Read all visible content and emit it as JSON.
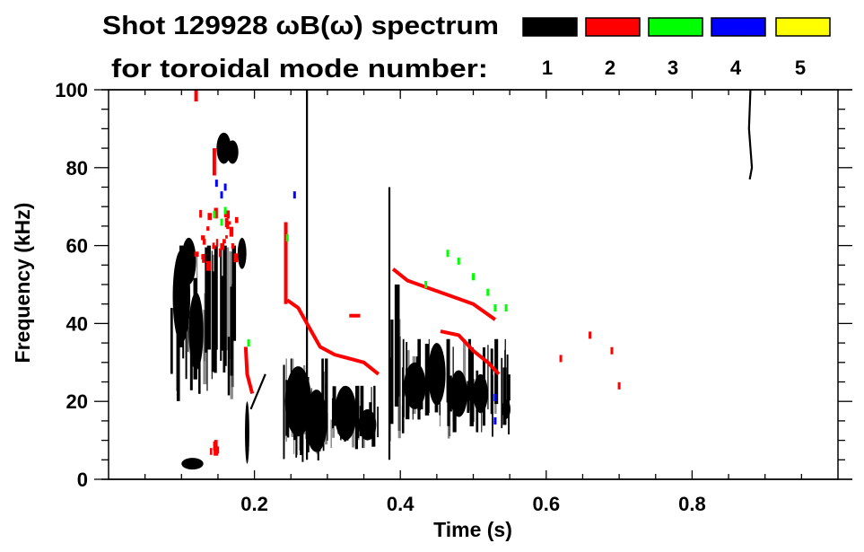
{
  "chart_data": {
    "type": "heatmap",
    "title": "Shot 129928 ωB(ω) spectrum",
    "subtitle": "for toroidal mode number:",
    "xlabel": "Time (s)",
    "ylabel": "Frequency (kHz)",
    "xlim": [
      0,
      1.0
    ],
    "ylim": [
      0,
      100
    ],
    "xticks": [
      "0.2",
      "0.4",
      "0.6",
      "0.8"
    ],
    "xtick_values": [
      0.2,
      0.4,
      0.6,
      0.8
    ],
    "yticks": [
      "0",
      "20",
      "40",
      "60",
      "80",
      "100"
    ],
    "ytick_values": [
      0,
      20,
      40,
      60,
      80,
      100
    ],
    "grid": false,
    "legend": {
      "placement": "top-right",
      "entries": [
        {
          "label": "1",
          "color": "#000000"
        },
        {
          "label": "2",
          "color": "#ff0000"
        },
        {
          "label": "3",
          "color": "#00ff00"
        },
        {
          "label": "4",
          "color": "#0000ff"
        },
        {
          "label": "5",
          "color": "#ffff00"
        }
      ]
    },
    "series": [
      {
        "name": "1",
        "color": "#000000",
        "bursts": [
          {
            "t": [
              0.085,
              0.175
            ],
            "f": [
              20,
              60
            ],
            "count": 34
          },
          {
            "t": [
              0.24,
              0.3
            ],
            "f": [
              4,
              31
            ],
            "count": 30
          },
          {
            "t": [
              0.3,
              0.37
            ],
            "f": [
              7,
              24
            ],
            "count": 26
          },
          {
            "t": [
              0.4,
              0.55
            ],
            "f": [
              10,
              36
            ],
            "count": 46
          },
          {
            "t": [
              0.38,
              0.4
            ],
            "f": [
              5,
              50
            ],
            "count": 6
          }
        ],
        "blobs": [
          [
            0.1,
            47,
            0.012,
            12
          ],
          [
            0.11,
            56,
            0.01,
            6
          ],
          [
            0.12,
            38,
            0.01,
            10
          ],
          [
            0.158,
            85,
            0.01,
            4
          ],
          [
            0.17,
            84,
            0.008,
            3
          ],
          [
            0.183,
            58,
            0.006,
            4
          ],
          [
            0.19,
            12,
            0.003,
            8
          ],
          [
            0.115,
            4,
            0.015,
            1.5
          ],
          [
            0.26,
            20,
            0.018,
            9
          ],
          [
            0.285,
            15,
            0.015,
            8
          ],
          [
            0.325,
            17,
            0.015,
            7
          ],
          [
            0.355,
            14,
            0.012,
            4
          ],
          [
            0.42,
            24,
            0.015,
            6
          ],
          [
            0.45,
            27,
            0.012,
            8
          ],
          [
            0.48,
            22,
            0.012,
            6
          ],
          [
            0.51,
            22,
            0.01,
            5
          ],
          [
            0.545,
            18,
            0.006,
            2.5
          ]
        ],
        "lines": [
          [
            [
              0.88,
              100
            ],
            [
              0.878,
              90
            ],
            [
              0.882,
              80
            ],
            [
              0.879,
              77
            ]
          ],
          [
            [
              0.385,
              75
            ],
            [
              0.385,
              5
            ]
          ],
          [
            [
              0.272,
              100
            ],
            [
              0.272,
              5
            ]
          ],
          [
            [
              0.195,
              18
            ],
            [
              0.215,
              27
            ]
          ]
        ]
      },
      {
        "name": "2",
        "color": "#ff0000",
        "scatter_regions": [
          {
            "t": [
              0.1,
              0.175
            ],
            "f": [
              55,
              70
            ],
            "count": 26
          },
          {
            "t": [
              0.13,
              0.15
            ],
            "f": [
              5,
              12
            ],
            "count": 5
          }
        ],
        "lines": [
          [
            [
              0.243,
              66
            ],
            [
              0.243,
              45
            ]
          ],
          [
            [
              0.245,
              46
            ],
            [
              0.26,
              44
            ],
            [
              0.275,
              39
            ],
            [
              0.29,
              34
            ],
            [
              0.31,
              32
            ],
            [
              0.33,
              31
            ],
            [
              0.35,
              30
            ],
            [
              0.37,
              27
            ]
          ],
          [
            [
              0.33,
              42
            ],
            [
              0.345,
              42
            ]
          ],
          [
            [
              0.39,
              54
            ],
            [
              0.41,
              51
            ],
            [
              0.44,
              49
            ],
            [
              0.47,
              47
            ],
            [
              0.5,
              45
            ],
            [
              0.53,
              41
            ]
          ],
          [
            [
              0.455,
              38
            ],
            [
              0.48,
              37
            ],
            [
              0.5,
              33
            ],
            [
              0.52,
              30
            ],
            [
              0.535,
              27
            ]
          ],
          [
            [
              0.188,
              34
            ],
            [
              0.19,
              27
            ],
            [
              0.197,
              22
            ]
          ],
          [
            [
              0.145,
              85
            ],
            [
              0.145,
              78
            ]
          ],
          [
            [
              0.12,
              100
            ],
            [
              0.12,
              97
            ]
          ]
        ],
        "points": [
          [
            0.66,
            37
          ],
          [
            0.69,
            33
          ],
          [
            0.7,
            24
          ],
          [
            0.62,
            31
          ]
        ]
      },
      {
        "name": "3",
        "color": "#00ff00",
        "points": [
          [
            0.145,
            68
          ],
          [
            0.155,
            66
          ],
          [
            0.16,
            69
          ],
          [
            0.192,
            35
          ],
          [
            0.245,
            62
          ],
          [
            0.465,
            58
          ],
          [
            0.48,
            56
          ],
          [
            0.5,
            52
          ],
          [
            0.52,
            48
          ],
          [
            0.53,
            44
          ],
          [
            0.545,
            44
          ],
          [
            0.435,
            50
          ]
        ]
      },
      {
        "name": "4",
        "color": "#0000ff",
        "points": [
          [
            0.148,
            76
          ],
          [
            0.155,
            73
          ],
          [
            0.16,
            75
          ],
          [
            0.255,
            73
          ],
          [
            0.53,
            21
          ],
          [
            0.53,
            15
          ]
        ]
      },
      {
        "name": "5",
        "color": "#ffff00",
        "points": []
      }
    ]
  }
}
